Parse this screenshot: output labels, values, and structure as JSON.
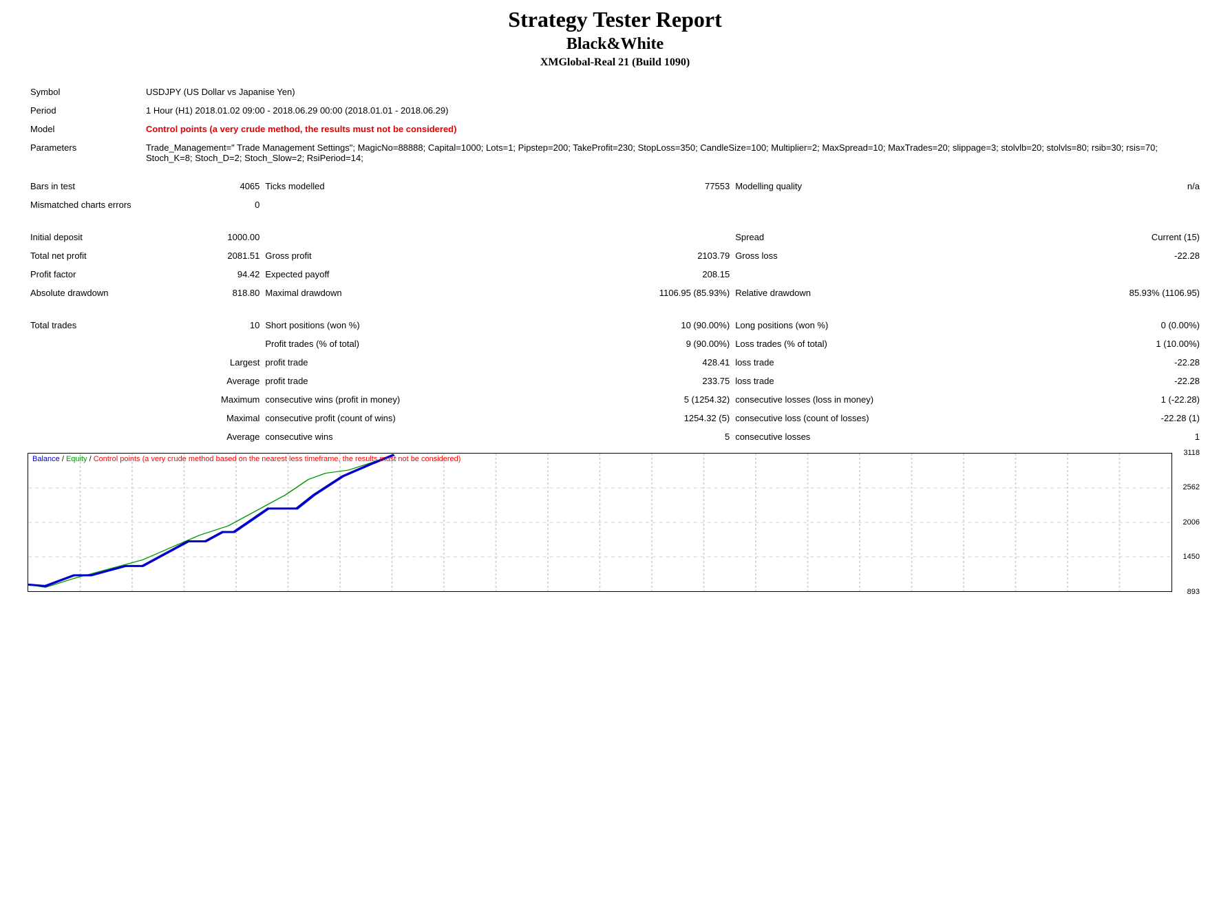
{
  "header": {
    "title1": "Strategy Tester Report",
    "title2": "Black&White",
    "title3": "XMGlobal-Real 21 (Build 1090)"
  },
  "top": {
    "symbol_label": "Symbol",
    "symbol_value": "USDJPY (US Dollar vs Japanise Yen)",
    "period_label": "Period",
    "period_value": "1 Hour (H1) 2018.01.02 09:00 - 2018.06.29 00:00 (2018.01.01 - 2018.06.29)",
    "model_label": "Model",
    "model_value": "Control points (a very crude method, the results must not be considered)",
    "parameters_label": "Parameters",
    "parameters_value": "Trade_Management=\" Trade Management Settings\"; MagicNo=88888; Capital=1000; Lots=1; Pipstep=200; TakeProfit=230; StopLoss=350; CandleSize=100; Multiplier=2; MaxSpread=10; MaxTrades=20; slippage=3; stolvlb=20; stolvls=80; rsib=30; rsis=70; Stoch_K=8; Stoch_D=2; Stoch_Slow=2; RsiPeriod=14;"
  },
  "stats": {
    "bars_in_test_label": "Bars in test",
    "bars_in_test": "4065",
    "ticks_modelled_label": "Ticks modelled",
    "ticks_modelled": "77553",
    "modelling_quality_label": "Modelling quality",
    "modelling_quality": "n/a",
    "mismatched_label": "Mismatched charts errors",
    "mismatched": "0",
    "initial_deposit_label": "Initial deposit",
    "initial_deposit": "1000.00",
    "spread_label": "Spread",
    "spread": "Current (15)",
    "total_net_profit_label": "Total net profit",
    "total_net_profit": "2081.51",
    "gross_profit_label": "Gross profit",
    "gross_profit": "2103.79",
    "gross_loss_label": "Gross loss",
    "gross_loss": "-22.28",
    "profit_factor_label": "Profit factor",
    "profit_factor": "94.42",
    "expected_payoff_label": "Expected payoff",
    "expected_payoff": "208.15",
    "abs_drawdown_label": "Absolute drawdown",
    "abs_drawdown": "818.80",
    "max_drawdown_label": "Maximal drawdown",
    "max_drawdown": "1106.95 (85.93%)",
    "rel_drawdown_label": "Relative drawdown",
    "rel_drawdown": "85.93% (1106.95)",
    "total_trades_label": "Total trades",
    "total_trades": "10",
    "short_pos_label": "Short positions (won %)",
    "short_pos": "10 (90.00%)",
    "long_pos_label": "Long positions (won %)",
    "long_pos": "0 (0.00%)",
    "profit_trades_label": "Profit trades (% of total)",
    "profit_trades": "9 (90.00%)",
    "loss_trades_label": "Loss trades (% of total)",
    "loss_trades": "1 (10.00%)",
    "largest_label": "Largest",
    "largest_profit_label": "profit trade",
    "largest_profit": "428.41",
    "largest_loss_label": "loss trade",
    "largest_loss": "-22.28",
    "average_label": "Average",
    "avg_profit_label": "profit trade",
    "avg_profit": "233.75",
    "avg_loss_label": "loss trade",
    "avg_loss": "-22.28",
    "maximum_label": "Maximum",
    "max_cons_wins_label": "consecutive wins (profit in money)",
    "max_cons_wins": "5 (1254.32)",
    "max_cons_losses_label": "consecutive losses (loss in money)",
    "max_cons_losses": "1 (-22.28)",
    "maximal_label": "Maximal",
    "maximal_cons_profit_label": "consecutive profit (count of wins)",
    "maximal_cons_profit": "1254.32 (5)",
    "maximal_cons_loss_label": "consecutive loss (count of losses)",
    "maximal_cons_loss": "-22.28 (1)",
    "avg2_label": "Average",
    "avg_cons_wins_label": "consecutive wins",
    "avg_cons_wins": "5",
    "avg_cons_losses_label": "consecutive losses",
    "avg_cons_losses": "1"
  },
  "chart": {
    "type": "line",
    "legend_balance": "Balance",
    "legend_equity": "Equity",
    "legend_note": "Control points (a very crude method based on the nearest less timeframe, the results must not be considered)",
    "legend_sep": " / ",
    "ylim": [
      893,
      3118
    ],
    "yticks": [
      893,
      1450,
      2006,
      2562,
      3118
    ],
    "grid_cols": 22,
    "grid_rows": 4,
    "grid_color": "#d0d0d0",
    "background_color": "#ffffff",
    "balance_color": "#0000cc",
    "equity_color": "#009900",
    "balance_linewidth": 3,
    "equity_linewidth": 1.2,
    "balance_points": [
      [
        0.0,
        1000
      ],
      [
        0.015,
        977
      ],
      [
        0.04,
        1150
      ],
      [
        0.055,
        1150
      ],
      [
        0.085,
        1300
      ],
      [
        0.1,
        1300
      ],
      [
        0.14,
        1700
      ],
      [
        0.155,
        1700
      ],
      [
        0.17,
        1850
      ],
      [
        0.18,
        1850
      ],
      [
        0.21,
        2230
      ],
      [
        0.235,
        2230
      ],
      [
        0.25,
        2450
      ],
      [
        0.275,
        2750
      ],
      [
        0.3,
        2950
      ],
      [
        0.32,
        3100
      ]
    ],
    "equity_points": [
      [
        0.0,
        1000
      ],
      [
        0.015,
        955
      ],
      [
        0.04,
        1100
      ],
      [
        0.07,
        1250
      ],
      [
        0.1,
        1400
      ],
      [
        0.125,
        1600
      ],
      [
        0.15,
        1800
      ],
      [
        0.175,
        1950
      ],
      [
        0.2,
        2200
      ],
      [
        0.225,
        2450
      ],
      [
        0.245,
        2700
      ],
      [
        0.26,
        2800
      ],
      [
        0.28,
        2850
      ],
      [
        0.3,
        2970
      ],
      [
        0.32,
        3100
      ]
    ]
  }
}
